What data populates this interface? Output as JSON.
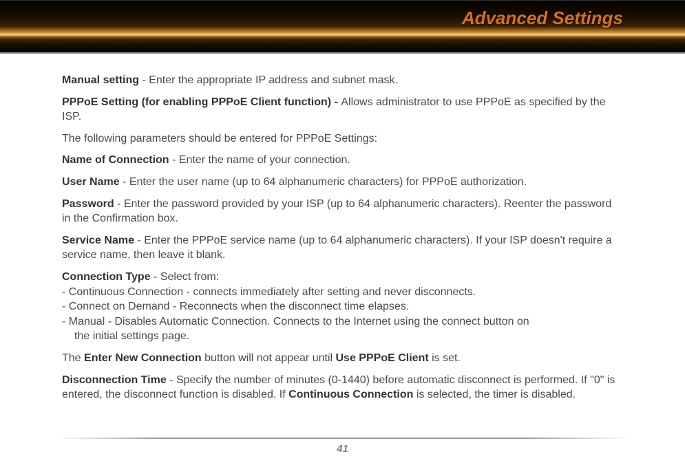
{
  "header": {
    "title": "Advanced Settings"
  },
  "paras": {
    "manual_b": "Manual setting",
    "manual_t": " - Enter the appropriate IP address and subnet mask.",
    "pppoe_b": "PPPoE Setting (for enabling PPPoE Client function) - ",
    "pppoe_t": "Allows administrator to use PPPoE as specified by the ISP.",
    "following": "The following parameters should be entered for PPPoE Settings:",
    "nameconn_b": "Name of Connection",
    "nameconn_t": " - Enter the name of your connection.",
    "username_b": "User Name",
    "username_t": " - Enter the user name (up to 64 alphanumeric characters) for PPPoE authorization.",
    "password_b": "Password",
    "password_t": " - Enter the password provided by your ISP (up to 64 alphanumeric characters).  Reenter the password in the Confirmation box.",
    "servicename_b": "Service Name",
    "servicename_t": " - Enter the PPPoE service name (up to 64 alphanumeric characters).  If your ISP doesn't require a service name, then leave it blank.",
    "conntype_b": "Connection Type",
    "conntype_t": " - Select from:",
    "ct1": "- Continuous Connection - connects immediately after setting and never disconnects.",
    "ct2": "- Connect on Demand - Reconnects when the disconnect time elapses.",
    "ct3a": "- Manual - Disables Automatic Connection.  Connects to the Internet using  the connect button on",
    "ct3b": "the initial settings page.",
    "enter_t1": "The ",
    "enter_b1": "Enter New Connection",
    "enter_t2": " button will not appear until ",
    "enter_b2": "Use PPPoE Client",
    "enter_t3": " is set.",
    "disc_b": "Disconnection Time",
    "disc_t1": " - Specify the number of minutes (0-1440) before automatic disconnect is performed.  If \"0\" is entered, the disconnect function is disabled.  If ",
    "disc_b2": "Continuous Connection",
    "disc_t2": " is selected, the timer is disabled."
  },
  "footer": {
    "page": "41"
  }
}
